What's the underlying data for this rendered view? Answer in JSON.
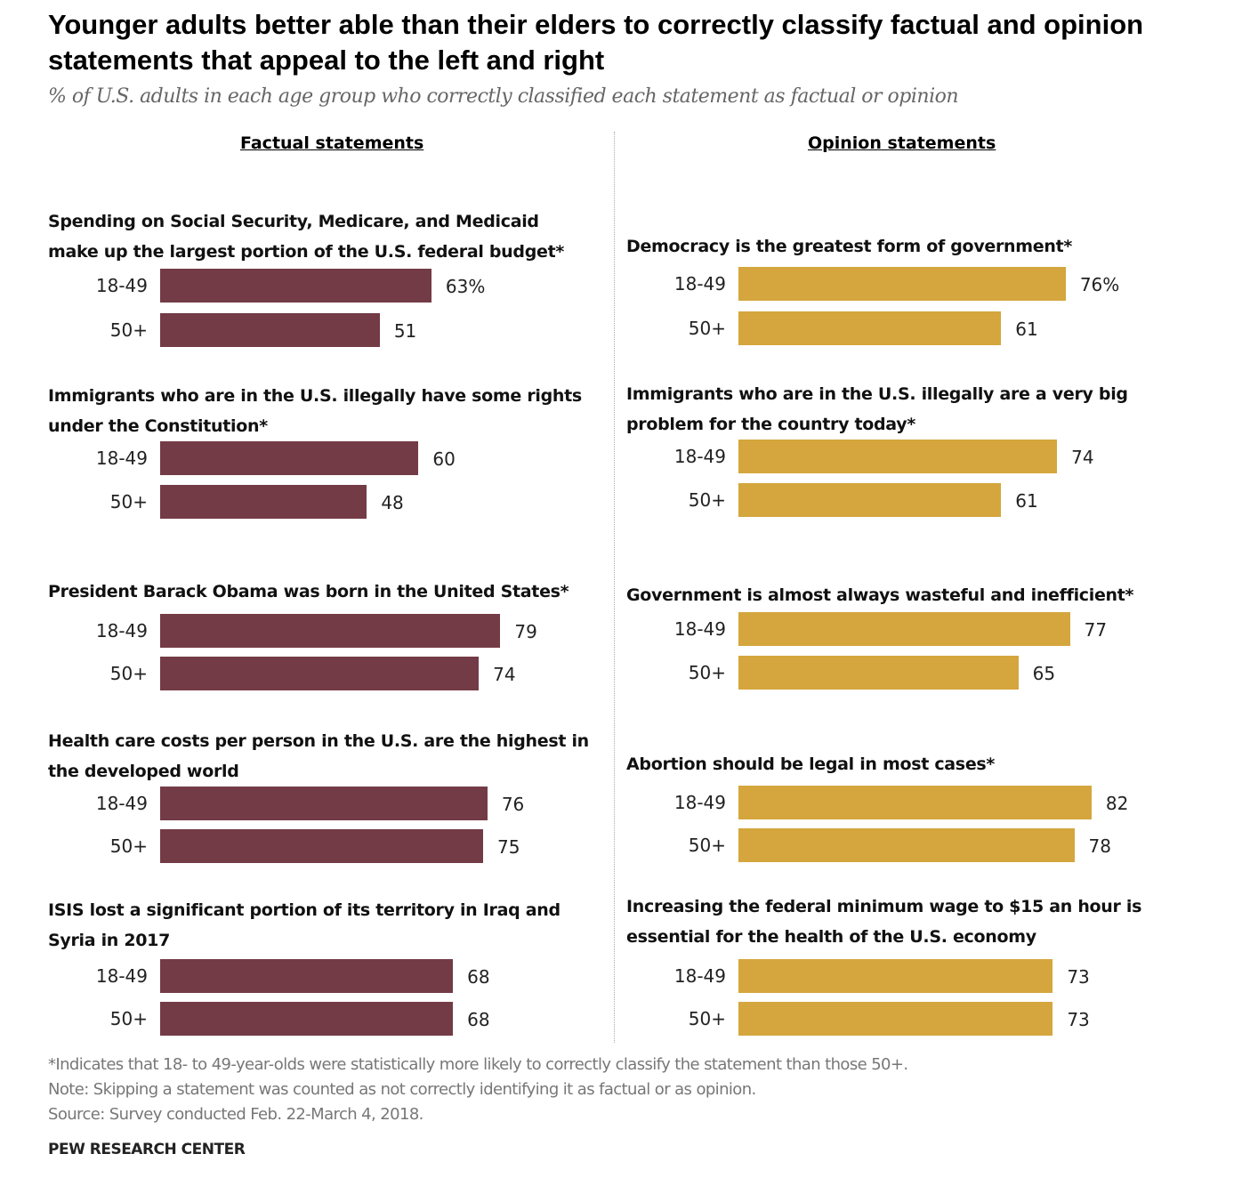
{
  "title": "Younger adults better able than their elders to correctly classify factual and opinion statements that appeal to the left and right",
  "subtitle": "% of U.S. adults in each age group who correctly classified each statement as factual or opinion",
  "notes": [
    "*Indicates that 18- to 49-year-olds were statistically more likely to correctly classify the statement than those 50+.",
    "Note: Skipping a statement was counted as not correctly identifying it as factual or as opinion.",
    "Source: Survey conducted Feb. 22-March 4, 2018."
  ],
  "brand": "PEW RESEARCH CENTER",
  "chart_data": [
    {
      "type": "bar",
      "title": "Factual statements",
      "color": "#733b46",
      "groups": [
        "18-49",
        "50+"
      ],
      "categories": [
        "Spending on Social Security, Medicare, and Medicaid make up the largest portion of the U.S. federal budget*",
        "Immigrants who are in the U.S. illegally have some rights under the Constitution*",
        "President Barack Obama was born in the United States*",
        "Health care costs per person in the U.S. are the highest in the developed world",
        "ISIS lost a significant portion of its territory in Iraq and Syria in 2017"
      ],
      "values": [
        [
          63,
          51
        ],
        [
          60,
          48
        ],
        [
          79,
          74
        ],
        [
          76,
          75
        ],
        [
          68,
          68
        ]
      ],
      "value_labels": [
        [
          "63%",
          "51"
        ],
        [
          "60",
          "48"
        ],
        [
          "79",
          "74"
        ],
        [
          "76",
          "75"
        ],
        [
          "68",
          "68"
        ]
      ]
    },
    {
      "type": "bar",
      "title": "Opinion statements",
      "color": "#d4a63d",
      "groups": [
        "18-49",
        "50+"
      ],
      "categories": [
        "Democracy is the greatest form of government*",
        "Immigrants who are in the U.S. illegally are a very big problem for the country today*",
        "Government is almost always wasteful and inefficient*",
        "Abortion should be legal in most cases*",
        "Increasing the federal minimum wage to $15 an hour is essential for the health of the U.S. economy"
      ],
      "values": [
        [
          76,
          61
        ],
        [
          74,
          61
        ],
        [
          77,
          65
        ],
        [
          82,
          78
        ],
        [
          73,
          73
        ]
      ],
      "value_labels": [
        [
          "76%",
          "61"
        ],
        [
          "74",
          "61"
        ],
        [
          "77",
          "65"
        ],
        [
          "82",
          "78"
        ],
        [
          "73",
          "73"
        ]
      ]
    }
  ]
}
